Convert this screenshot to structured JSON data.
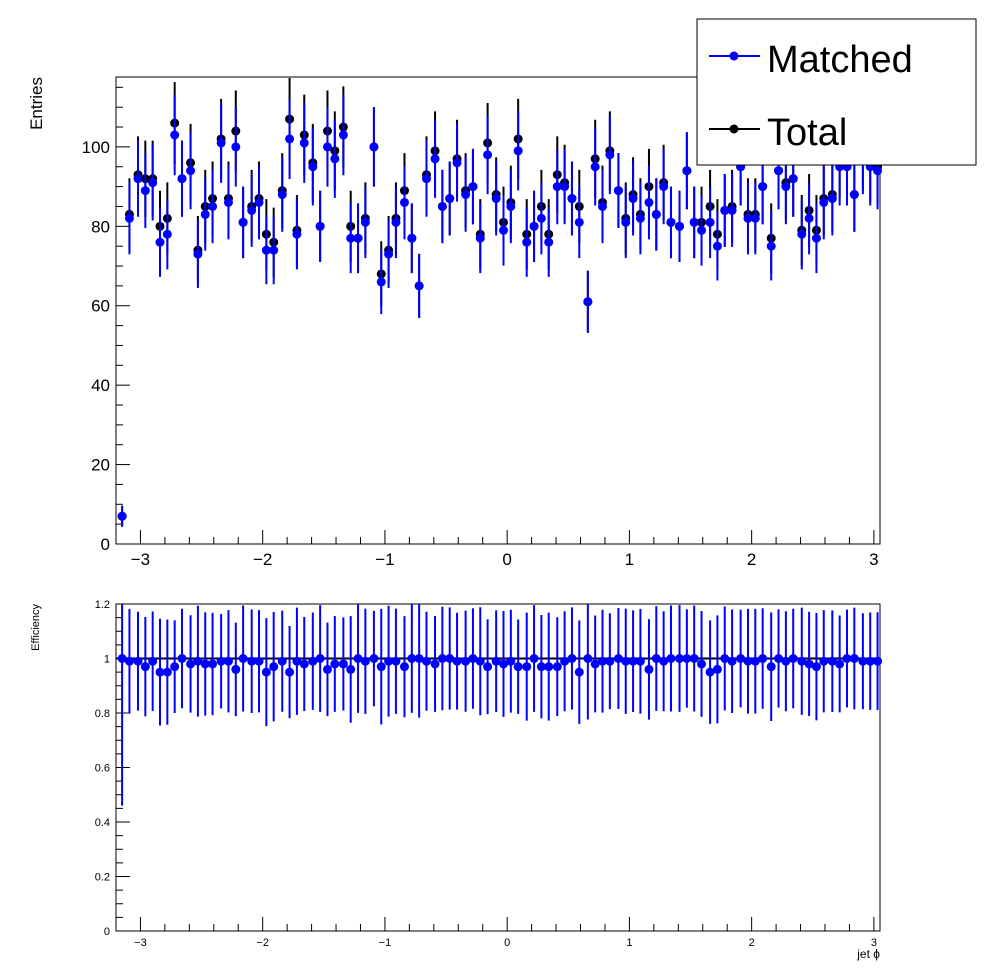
{
  "chart_data": [
    {
      "type": "scatter",
      "panel": "top",
      "xlabel": "",
      "ylabel": "Entries",
      "xlim": [
        -3.2,
        3.05
      ],
      "ylim": [
        0,
        117.6
      ],
      "xticks": [
        "−3",
        "−2",
        "−1",
        "0",
        "1",
        "2",
        "3"
      ],
      "yticks": [
        "0",
        "20",
        "40",
        "60",
        "80",
        "100"
      ],
      "legend": {
        "placement": "top-right",
        "entries": [
          {
            "label": "Matched",
            "color": "#0000ff"
          },
          {
            "label": "Total",
            "color": "#000000"
          }
        ]
      },
      "x": [
        -3.15,
        -3.09,
        -3.02,
        -2.96,
        -2.9,
        -2.84,
        -2.78,
        -2.72,
        -2.66,
        -2.59,
        -2.53,
        -2.47,
        -2.41,
        -2.34,
        -2.28,
        -2.22,
        -2.16,
        -2.09,
        -2.03,
        -1.97,
        -1.91,
        -1.84,
        -1.78,
        -1.72,
        -1.66,
        -1.59,
        -1.53,
        -1.47,
        -1.41,
        -1.34,
        -1.28,
        -1.22,
        -1.16,
        -1.09,
        -1.03,
        -0.97,
        -0.91,
        -0.84,
        -0.78,
        -0.72,
        -0.66,
        -0.59,
        -0.53,
        -0.47,
        -0.41,
        -0.34,
        -0.28,
        -0.22,
        -0.16,
        -0.09,
        -0.03,
        0.03,
        0.09,
        0.16,
        0.22,
        0.28,
        0.34,
        0.41,
        0.47,
        0.53,
        0.59,
        0.66,
        0.72,
        0.78,
        0.84,
        0.91,
        0.97,
        1.03,
        1.09,
        1.16,
        1.22,
        1.28,
        1.34,
        1.41,
        1.47,
        1.53,
        1.59,
        1.66,
        1.72,
        1.78,
        1.84,
        1.91,
        1.97,
        2.03,
        2.09,
        2.16,
        2.22,
        2.28,
        2.34,
        2.41,
        2.47,
        2.53,
        2.59,
        2.66,
        2.72,
        2.78,
        2.84,
        2.91,
        2.97,
        3.03
      ],
      "series": [
        {
          "name": "Total",
          "color": "#000000",
          "values": [
            7,
            83,
            93,
            92,
            92,
            80,
            82,
            106,
            92,
            96,
            74,
            85,
            87,
            102,
            87,
            104,
            81,
            85,
            87,
            78,
            76,
            89,
            107,
            79,
            103,
            96,
            80,
            104,
            99,
            105,
            80,
            77,
            82,
            100,
            68,
            74,
            82,
            89,
            77,
            65,
            93,
            99,
            85,
            87,
            97,
            89,
            90,
            78,
            101,
            88,
            81,
            86,
            102,
            78,
            80,
            85,
            78,
            93,
            91,
            87,
            85,
            61,
            97,
            86,
            99,
            89,
            82,
            88,
            83,
            90,
            83,
            91,
            81,
            80,
            94,
            81,
            81,
            85,
            78,
            84,
            85,
            95,
            83,
            83,
            90,
            77,
            94,
            91,
            92,
            79,
            84,
            79,
            87,
            88,
            97,
            95,
            88,
            99,
            96,
            95
          ]
        },
        {
          "name": "Matched",
          "color": "#0000ff",
          "values": [
            7,
            82,
            92,
            89,
            91,
            76,
            78,
            103,
            92,
            94,
            73,
            83,
            85,
            101,
            86,
            100,
            81,
            84,
            86,
            74,
            74,
            88,
            102,
            78,
            101,
            95,
            80,
            100,
            97,
            103,
            77,
            77,
            81,
            100,
            66,
            73,
            81,
            86,
            77,
            65,
            92,
            97,
            85,
            87,
            96,
            88,
            90,
            77,
            98,
            87,
            79,
            85,
            99,
            76,
            80,
            82,
            76,
            90,
            90,
            87,
            81,
            61,
            95,
            85,
            98,
            89,
            81,
            87,
            82,
            86,
            83,
            90,
            81,
            80,
            94,
            81,
            79,
            81,
            75,
            84,
            84,
            95,
            82,
            82,
            90,
            75,
            94,
            90,
            92,
            78,
            82,
            77,
            86,
            87,
            95,
            95,
            88,
            98,
            95,
            94
          ]
        }
      ]
    },
    {
      "type": "scatter",
      "panel": "bottom",
      "xlabel": "jet ϕ",
      "ylabel": "Efficiency",
      "xlim": [
        -3.2,
        3.05
      ],
      "ylim": [
        0,
        1.2
      ],
      "xticks": [
        "−3",
        "−2",
        "−1",
        "0",
        "1",
        "2",
        "3"
      ],
      "yticks": [
        "0",
        "0.2",
        "0.4",
        "0.6",
        "0.8",
        "1",
        "1.2"
      ],
      "series": [
        {
          "name": "",
          "color": "#0000ff",
          "values": [
            1.0,
            0.99,
            0.99,
            0.97,
            0.99,
            0.95,
            0.95,
            0.97,
            1.0,
            0.98,
            0.99,
            0.98,
            0.98,
            0.99,
            0.99,
            0.96,
            1.0,
            0.99,
            0.99,
            0.95,
            0.97,
            0.99,
            0.95,
            0.99,
            0.98,
            0.99,
            1.0,
            0.96,
            0.98,
            0.98,
            0.96,
            1.0,
            0.99,
            1.0,
            0.97,
            0.99,
            0.99,
            0.97,
            1.0,
            1.0,
            0.99,
            0.98,
            1.0,
            1.0,
            0.99,
            0.99,
            1.0,
            0.99,
            0.97,
            0.99,
            0.98,
            0.99,
            0.97,
            0.97,
            1.0,
            0.97,
            0.97,
            0.97,
            0.99,
            1.0,
            0.95,
            1.0,
            0.98,
            0.99,
            0.99,
            1.0,
            0.99,
            0.99,
            0.99,
            0.96,
            1.0,
            0.99,
            1.0,
            1.0,
            1.0,
            1.0,
            0.98,
            0.95,
            0.96,
            1.0,
            0.99,
            1.0,
            0.99,
            0.99,
            1.0,
            0.97,
            1.0,
            0.99,
            1.0,
            0.99,
            0.98,
            0.97,
            0.99,
            0.99,
            0.98,
            1.0,
            1.0,
            0.99,
            0.99,
            0.99
          ]
        }
      ]
    }
  ]
}
